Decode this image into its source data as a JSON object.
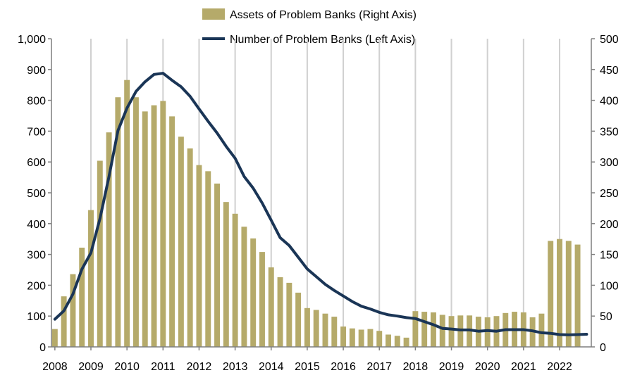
{
  "chart_data": {
    "type": "bar+line",
    "legend": {
      "placement": "top-center",
      "bar_label": "Assets of Problem Banks (Right Axis)",
      "line_label": "Number of Problem Banks (Left Axis)"
    },
    "x_start": 2008,
    "x_end": 2022.75,
    "year_labels": [
      "2008",
      "2009",
      "2010",
      "2011",
      "2012",
      "2013",
      "2014",
      "2015",
      "2016",
      "2017",
      "2018",
      "2019",
      "2020",
      "2021",
      "2022"
    ],
    "left_axis": {
      "min": 0,
      "max": 1000,
      "ticks": [
        "0",
        "100",
        "200",
        "300",
        "400",
        "500",
        "600",
        "700",
        "800",
        "900",
        "1,000"
      ]
    },
    "right_axis": {
      "min": 0,
      "max": 500,
      "ticks": [
        "0",
        "50",
        "100",
        "150",
        "200",
        "250",
        "300",
        "350",
        "400",
        "450",
        "500"
      ]
    },
    "grid": "vertical-at-years",
    "colors": {
      "bars": "#b5aa6a",
      "line": "#1a3556",
      "grid": "#d0d0d0",
      "axis": "#7f7f7f"
    },
    "bars": {
      "name": "Assets of Problem Banks (Right Axis)",
      "x": [
        2008.0,
        2008.25,
        2008.5,
        2008.75,
        2009.0,
        2009.25,
        2009.5,
        2009.75,
        2010.0,
        2010.25,
        2010.5,
        2010.75,
        2011.0,
        2011.25,
        2011.5,
        2011.75,
        2012.0,
        2012.25,
        2012.5,
        2012.75,
        2013.0,
        2013.25,
        2013.5,
        2013.75,
        2014.0,
        2014.25,
        2014.5,
        2014.75,
        2015.0,
        2015.25,
        2015.5,
        2015.75,
        2016.0,
        2016.25,
        2016.5,
        2016.75,
        2017.0,
        2017.25,
        2017.5,
        2017.75,
        2018.0,
        2018.25,
        2018.5,
        2018.75,
        2019.0,
        2019.25,
        2019.5,
        2019.75,
        2020.0,
        2020.25,
        2020.5,
        2020.75,
        2021.0,
        2021.25,
        2021.5,
        2021.75,
        2022.0,
        2022.25,
        2022.5,
        2022.75
      ],
      "values": [
        29,
        82,
        118,
        161,
        222,
        302,
        348,
        405,
        433,
        405,
        382,
        392,
        399,
        374,
        341,
        322,
        295,
        285,
        265,
        235,
        216,
        195,
        176,
        154,
        129,
        113,
        104,
        88,
        63,
        60,
        54,
        49,
        33,
        30,
        28,
        29,
        26,
        20,
        18,
        15,
        58,
        57,
        56,
        52,
        50,
        51,
        51,
        49,
        48,
        50,
        55,
        57,
        56,
        48,
        54,
        172,
        175,
        172,
        166,
        0
      ]
    },
    "line": {
      "name": "Number of Problem Banks (Left Axis)",
      "x": [
        2008.0,
        2008.25,
        2008.5,
        2008.75,
        2009.0,
        2009.25,
        2009.5,
        2009.75,
        2010.0,
        2010.25,
        2010.5,
        2010.75,
        2011.0,
        2011.25,
        2011.5,
        2011.75,
        2012.0,
        2012.25,
        2012.5,
        2012.75,
        2013.0,
        2013.25,
        2013.5,
        2013.75,
        2014.0,
        2014.25,
        2014.5,
        2014.75,
        2015.0,
        2015.25,
        2015.5,
        2015.75,
        2016.0,
        2016.25,
        2016.5,
        2016.75,
        2017.0,
        2017.25,
        2017.5,
        2017.75,
        2018.0,
        2018.25,
        2018.5,
        2018.75,
        2019.0,
        2019.25,
        2019.5,
        2019.75,
        2020.0,
        2020.25,
        2020.5,
        2020.75,
        2021.0,
        2021.25,
        2021.5,
        2021.75,
        2022.0,
        2022.25,
        2022.5,
        2022.75
      ],
      "values": [
        90,
        117,
        171,
        252,
        305,
        416,
        552,
        702,
        775,
        829,
        860,
        884,
        888,
        865,
        844,
        813,
        772,
        732,
        694,
        651,
        612,
        553,
        515,
        467,
        411,
        354,
        329,
        291,
        253,
        228,
        203,
        183,
        165,
        147,
        132,
        123,
        112,
        104,
        100,
        95,
        92,
        82,
        72,
        60,
        58,
        55,
        55,
        51,
        53,
        51,
        56,
        56,
        56,
        52,
        46,
        44,
        40,
        39,
        40,
        41
      ]
    }
  }
}
